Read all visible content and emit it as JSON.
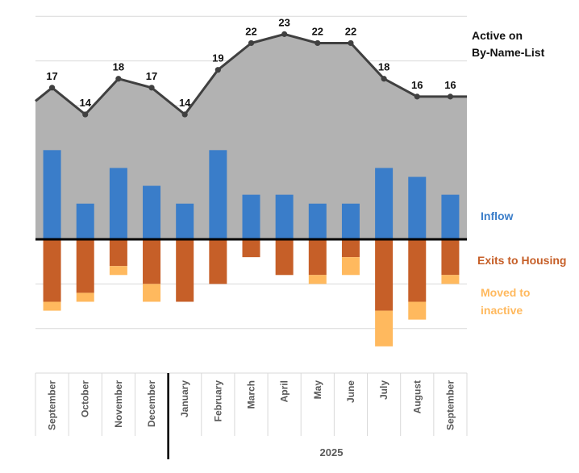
{
  "chart_data": {
    "type": "combo-area-stacked-bar",
    "categories": [
      "September",
      "October",
      "November",
      "December",
      "January",
      "February",
      "March",
      "April",
      "May",
      "June",
      "July",
      "August",
      "September"
    ],
    "active": {
      "name_line1": "Active on",
      "name_line2": "By-Name-List",
      "values": [
        17,
        14,
        18,
        17,
        14,
        19,
        22,
        23,
        22,
        22,
        18,
        16,
        16
      ],
      "color": "#B2B2B2",
      "line_color": "#404040"
    },
    "series": [
      {
        "name": "Inflow",
        "values": [
          10,
          4,
          8,
          6,
          4,
          10,
          5,
          5,
          4,
          4,
          8,
          7,
          5
        ],
        "color": "#3A7DC9"
      },
      {
        "name": "Exits to Housing",
        "values": [
          -7,
          -6,
          -3,
          -5,
          -7,
          -5,
          -2,
          -4,
          -4,
          -2,
          -8,
          -7,
          -4
        ],
        "color": "#C65F28"
      },
      {
        "name": "Moved to inactive",
        "name_line1": "Moved to",
        "name_line2": "inactive",
        "values": [
          -1,
          -1,
          -1,
          -2,
          0,
          0,
          0,
          0,
          -1,
          -2,
          -4,
          -2,
          -1
        ],
        "color": "#FFB95E"
      }
    ],
    "ylim": [
      -15,
      25
    ],
    "gridlines": true,
    "year_label": "2025",
    "year_boundary_after_index": 3
  }
}
